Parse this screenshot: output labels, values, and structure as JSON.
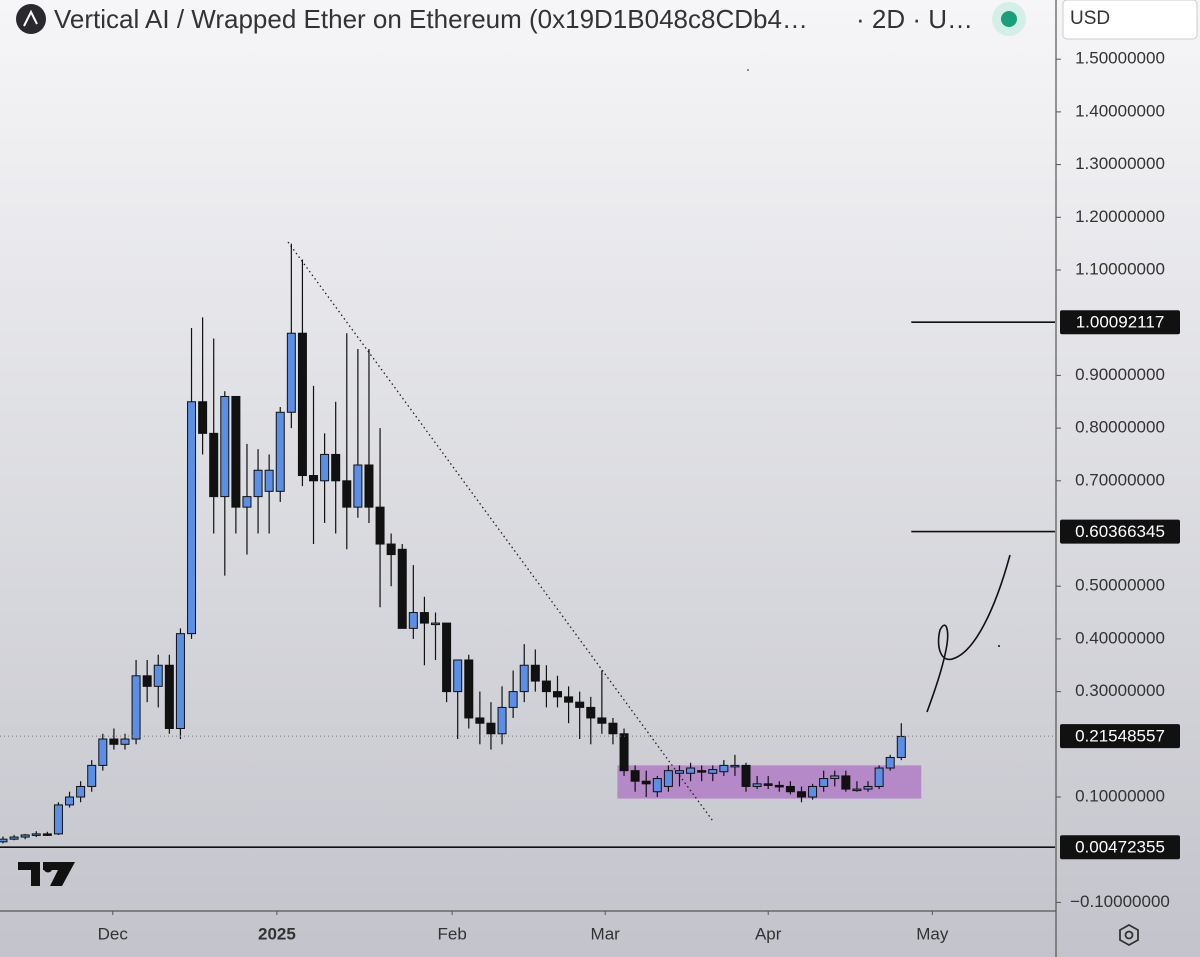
{
  "chart_data": {
    "type": "candlestick",
    "title": "Vertical AI / Wrapped Ether on Ethereum (0x19D1B048c8CDb4…",
    "interval": "· 2D · U…",
    "currency": "USD",
    "up_color": "#5b8fe6",
    "down_color": "#111111",
    "open": [
      0.015,
      0.02,
      0.024,
      0.028,
      0.03,
      0.03,
      0.085,
      0.1,
      0.12,
      0.16,
      0.21,
      0.2,
      0.21,
      0.33,
      0.31,
      0.35,
      0.23,
      0.41,
      0.85,
      0.79,
      0.67,
      0.86,
      0.65,
      0.67,
      0.68,
      0.68,
      0.83,
      0.98,
      0.71,
      0.7,
      0.75,
      0.7,
      0.65,
      0.73,
      0.65,
      0.58,
      0.57,
      0.42,
      0.45,
      0.43,
      0.43,
      0.3,
      0.36,
      0.25,
      0.24,
      0.22,
      0.27,
      0.3,
      0.35,
      0.32,
      0.3,
      0.29,
      0.28,
      0.27,
      0.25,
      0.24,
      0.22,
      0.15,
      0.13,
      0.11,
      0.12,
      0.145,
      0.145,
      0.15,
      0.145,
      0.148,
      0.16,
      0.16,
      0.12,
      0.125,
      0.122,
      0.12,
      0.11,
      0.1,
      0.12,
      0.135,
      0.14,
      0.115,
      0.115,
      0.12,
      0.155,
      0.175
    ],
    "high": [
      0.025,
      0.028,
      0.03,
      0.035,
      0.034,
      0.09,
      0.11,
      0.13,
      0.17,
      0.22,
      0.23,
      0.22,
      0.36,
      0.36,
      0.37,
      0.37,
      0.42,
      0.99,
      1.01,
      0.97,
      0.87,
      0.86,
      0.77,
      0.76,
      0.75,
      0.84,
      1.15,
      1.12,
      0.88,
      0.79,
      0.85,
      0.98,
      0.95,
      0.95,
      0.8,
      0.6,
      0.58,
      0.54,
      0.48,
      0.45,
      0.43,
      0.36,
      0.37,
      0.3,
      0.28,
      0.31,
      0.34,
      0.39,
      0.38,
      0.35,
      0.33,
      0.31,
      0.3,
      0.29,
      0.34,
      0.25,
      0.23,
      0.16,
      0.15,
      0.14,
      0.16,
      0.16,
      0.165,
      0.16,
      0.16,
      0.17,
      0.18,
      0.165,
      0.14,
      0.14,
      0.13,
      0.13,
      0.12,
      0.125,
      0.15,
      0.15,
      0.15,
      0.13,
      0.13,
      0.16,
      0.18,
      0.24
    ],
    "low": [
      0.012,
      0.018,
      0.02,
      0.024,
      0.026,
      0.028,
      0.08,
      0.09,
      0.11,
      0.15,
      0.19,
      0.19,
      0.2,
      0.28,
      0.27,
      0.22,
      0.21,
      0.4,
      0.75,
      0.6,
      0.52,
      0.6,
      0.56,
      0.6,
      0.6,
      0.66,
      0.8,
      0.69,
      0.58,
      0.62,
      0.6,
      0.57,
      0.63,
      0.62,
      0.46,
      0.5,
      0.43,
      0.4,
      0.35,
      0.36,
      0.28,
      0.21,
      0.23,
      0.2,
      0.19,
      0.2,
      0.25,
      0.28,
      0.3,
      0.27,
      0.27,
      0.24,
      0.21,
      0.2,
      0.22,
      0.2,
      0.14,
      0.11,
      0.1,
      0.1,
      0.11,
      0.12,
      0.13,
      0.13,
      0.13,
      0.14,
      0.14,
      0.11,
      0.115,
      0.115,
      0.11,
      0.105,
      0.09,
      0.095,
      0.11,
      0.12,
      0.11,
      0.11,
      0.11,
      0.115,
      0.15,
      0.17
    ],
    "close": [
      0.02,
      0.024,
      0.028,
      0.03,
      0.029,
      0.085,
      0.1,
      0.12,
      0.16,
      0.21,
      0.2,
      0.21,
      0.33,
      0.31,
      0.35,
      0.23,
      0.41,
      0.85,
      0.79,
      0.67,
      0.86,
      0.65,
      0.67,
      0.72,
      0.72,
      0.83,
      0.98,
      0.71,
      0.7,
      0.75,
      0.7,
      0.65,
      0.73,
      0.65,
      0.58,
      0.56,
      0.42,
      0.45,
      0.43,
      0.43,
      0.3,
      0.36,
      0.25,
      0.24,
      0.22,
      0.27,
      0.3,
      0.35,
      0.32,
      0.3,
      0.29,
      0.28,
      0.27,
      0.25,
      0.24,
      0.22,
      0.15,
      0.13,
      0.125,
      0.135,
      0.15,
      0.15,
      0.155,
      0.148,
      0.152,
      0.16,
      0.16,
      0.12,
      0.125,
      0.122,
      0.12,
      0.11,
      0.1,
      0.12,
      0.135,
      0.14,
      0.115,
      0.115,
      0.12,
      0.155,
      0.175,
      0.215
    ],
    "xlim": [
      -0.27,
      94.86
    ],
    "xticks": [
      {
        "value": 9.9,
        "label": "Dec"
      },
      {
        "value": 24.7,
        "label": "2025"
      },
      {
        "value": 40.5,
        "label": "Feb"
      },
      {
        "value": 54.3,
        "label": "Mar"
      },
      {
        "value": 69,
        "label": "Apr"
      },
      {
        "value": 83.8,
        "label": "May"
      }
    ],
    "ylim": [
      -0.1144,
      1.6123
    ],
    "yticks": [
      {
        "value": 1.5,
        "label": "1.50000000"
      },
      {
        "value": 1.4,
        "label": "1.40000000"
      },
      {
        "value": 1.3,
        "label": "1.30000000"
      },
      {
        "value": 1.2,
        "label": "1.20000000"
      },
      {
        "value": 1.1,
        "label": "1.10000000"
      },
      {
        "value": 0.9,
        "label": "0.90000000"
      },
      {
        "value": 0.8,
        "label": "0.80000000"
      },
      {
        "value": 0.7,
        "label": "0.70000000"
      },
      {
        "value": 0.5,
        "label": "0.50000000"
      },
      {
        "value": 0.4,
        "label": "0.40000000"
      },
      {
        "value": 0.3,
        "label": "0.30000000"
      },
      {
        "value": 0.1,
        "label": "0.10000000"
      },
      {
        "value": -0.1,
        "label": "−0.10000000"
      }
    ],
    "price_lines": [
      {
        "value": 1.00092117,
        "from": 81.9
      },
      {
        "value": 0.60366345,
        "from": 81.9
      },
      {
        "value": 0.21548557,
        "from": -0.27,
        "dotted": true
      },
      {
        "value": 0.00472355,
        "from": -0.27
      }
    ],
    "box": {
      "x": [
        55.4,
        82.8
      ],
      "y": [
        0.097,
        0.16
      ],
      "color": "#b07cc6"
    },
    "trendline": {
      "x": [
        25.7,
        64.1
      ],
      "y": [
        1.153,
        0.052
      ]
    }
  }
}
